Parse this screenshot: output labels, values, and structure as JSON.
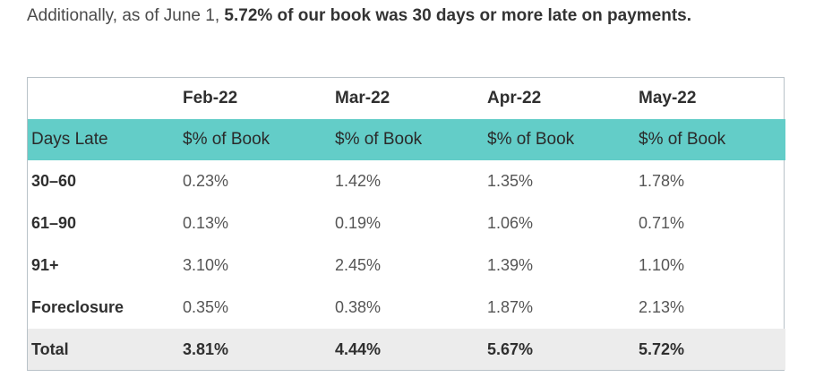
{
  "intro": {
    "prefix": "Additionally, as of June 1, ",
    "highlight": "5.72% of our book was 30 days or more late on payments."
  },
  "table": {
    "months": [
      "Feb-22",
      "Mar-22",
      "Apr-22",
      "May-22"
    ],
    "sub_header": {
      "label": "Days Late",
      "columns": [
        "$% of Book",
        "$% of Book",
        "$% of Book",
        "$% of Book"
      ]
    },
    "rows": [
      {
        "label": "30–60",
        "values": [
          "0.23%",
          "1.42%",
          "1.35%",
          "1.78%"
        ]
      },
      {
        "label": "61–90",
        "values": [
          "0.13%",
          "0.19%",
          "1.06%",
          "0.71%"
        ]
      },
      {
        "label": "91+",
        "values": [
          "3.10%",
          "2.45%",
          "1.39%",
          "1.10%"
        ]
      },
      {
        "label": "Foreclosure",
        "values": [
          "0.35%",
          "0.38%",
          "1.87%",
          "2.13%"
        ]
      }
    ],
    "total": {
      "label": "Total",
      "values": [
        "3.81%",
        "4.44%",
        "5.67%",
        "5.72%"
      ]
    }
  },
  "colors": {
    "header_band": "#63cdc8",
    "total_band": "#ececec",
    "border": "#b9c2c8"
  }
}
